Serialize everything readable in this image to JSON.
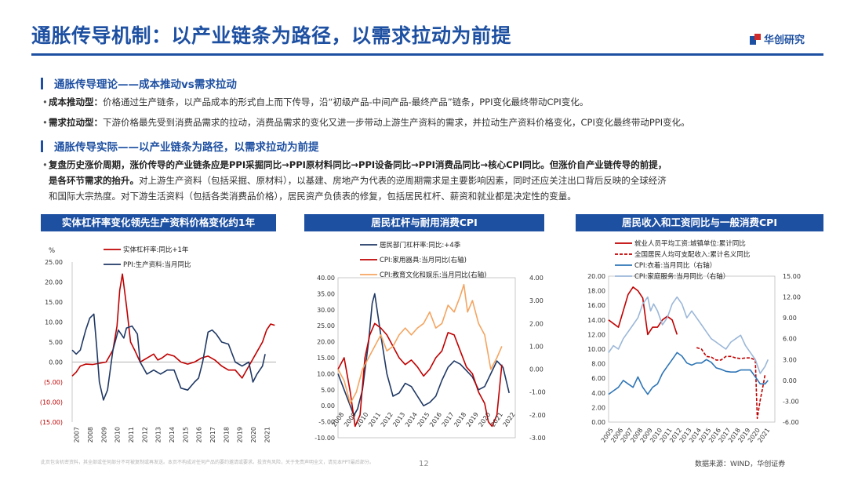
{
  "header": {
    "title": "通胀传导机制：以产业链条为路径，以需求拉动为前提",
    "logo_text": "华创研究"
  },
  "section1": {
    "heading": "通胀传导理论——成本推动vs需求拉动",
    "bullets": [
      {
        "bold": "成本推动型：",
        "text": "价格通过生产链条，以产品成本的形式自上而下传导，沿“初级产品-中间产品-最终产品”链条，PPI变化最终带动CPI变化。"
      },
      {
        "bold": "需求拉动型：",
        "text": "下游价格最先受到消费品需求的拉动，消费品需求的变化又进一步带动上游生产资料的需求，并拉动生产资料价格变化，CPI变化最终带动PPI变化。"
      }
    ]
  },
  "section2": {
    "heading": "通胀传导实际——以产业链条为路径，以需求拉动为前提",
    "bold_lines": [
      "复盘历史涨价周期，涨价传导的产业链条应是PPI采掘同比→PPI原材料同比→PPI设备同比→PPI消费品同比→核心CPI同比。但涨价自产业链传导的前提，",
      "是各环节需求的抬升。"
    ],
    "normal_line1": "对上游生产资料（包括采掘、原材料），以基建、房地产为代表的逆周期需求是主要影响因素，同时还应关注出口背后反映的全球经济",
    "normal_line2": "和国际大宗热度。对下游生活资料（包括各类消费品价格），居民资产负债表的修复，包括居民杠杆、薪资和就业都是决定性的变量。"
  },
  "panels": {
    "p1": "实体杠杆率变化领先生产资料价格变化约1年",
    "p2": "居民杠杆与耐用消费CPI",
    "p3": "居民收入和工资同比与一般消费CPI"
  },
  "colors": {
    "brand": "#1e50a2",
    "red": "#c00000",
    "navy": "#1f3864",
    "orange": "#f4a460",
    "blue": "#2e75b6",
    "lightblue": "#9bb7d8"
  },
  "chart_data": [
    {
      "type": "line",
      "unit_label": "%",
      "ylim": [
        -15,
        25
      ],
      "yticks": [
        "25.00",
        "20.00",
        "15.00",
        "10.00",
        "5.00",
        "0.00",
        "(5.00)",
        "(10.00)",
        "(15.00)"
      ],
      "xticks": [
        "2007",
        "2008",
        "2009",
        "2010",
        "2011",
        "2012",
        "2013",
        "2014",
        "2015",
        "2016",
        "2017",
        "2018",
        "2019",
        "2020",
        "2021"
      ],
      "x_range": [
        2007,
        2022
      ],
      "series": [
        {
          "name": "实体杠杆率:同比+1年",
          "color": "red",
          "x": [
            2007.0,
            2007.3,
            2007.6,
            2008.0,
            2008.5,
            2009.0,
            2009.5,
            2010.0,
            2010.3,
            2010.5,
            2010.7,
            2011.0,
            2011.3,
            2011.6,
            2012.0,
            2012.5,
            2013.0,
            2013.3,
            2013.6,
            2014.0,
            2014.5,
            2015.0,
            2015.5,
            2016.0,
            2016.5,
            2017.0,
            2017.5,
            2018.0,
            2018.5,
            2019.0,
            2019.5,
            2020.0,
            2020.5,
            2021.0,
            2021.3,
            2021.6,
            2021.9
          ],
          "y": [
            -3.5,
            -2.5,
            -1,
            -0.5,
            -0.6,
            -0.3,
            0,
            3,
            9,
            18,
            22,
            14,
            5,
            3,
            0,
            1,
            2,
            0.5,
            1,
            2,
            1.5,
            0,
            -0.5,
            0,
            1,
            1.5,
            0.5,
            -1,
            -2,
            -2,
            -4,
            -1,
            2,
            5,
            8,
            9.5,
            9.2
          ]
        },
        {
          "name": "PPI:生产资料:当月同比",
          "color": "navy",
          "x": [
            2007.0,
            2007.3,
            2007.6,
            2008.0,
            2008.3,
            2008.6,
            2008.8,
            2009.0,
            2009.3,
            2009.6,
            2010.0,
            2010.4,
            2010.8,
            2011.0,
            2011.4,
            2011.8,
            2012.0,
            2012.5,
            2013.0,
            2013.5,
            2014.0,
            2014.5,
            2015.0,
            2015.5,
            2016.0,
            2016.3,
            2016.6,
            2017.0,
            2017.3,
            2017.6,
            2018.0,
            2018.5,
            2019.0,
            2019.5,
            2020.0,
            2020.3,
            2020.6,
            2021.0,
            2021.2
          ],
          "y": [
            3,
            2,
            3,
            8,
            11,
            12,
            4,
            -5,
            -9.5,
            -7,
            3,
            8,
            6,
            8.5,
            9,
            7,
            0,
            -3,
            -2,
            -3,
            -2,
            -2,
            -6.5,
            -7,
            -5,
            -4,
            0,
            7.5,
            8,
            7,
            5,
            4.5,
            0,
            -1,
            0,
            -5,
            -3,
            -1,
            2
          ]
        }
      ]
    },
    {
      "type": "line",
      "ylim_left": [
        -10,
        40
      ],
      "ylim_right": [
        -3,
        4
      ],
      "yticks_left": [
        "40.00",
        "35.00",
        "30.00",
        "25.00",
        "20.00",
        "15.00",
        "10.00",
        "5.00",
        "0.00",
        "-5.00",
        "-10.00"
      ],
      "yticks_right": [
        "4.00",
        "3.00",
        "2.00",
        "1.00",
        "0.00",
        "-1.00",
        "-2.00",
        "-3.00"
      ],
      "xticks": [
        "2008",
        "2009",
        "2010",
        "2011",
        "2012",
        "2013",
        "2014",
        "2015",
        "2016",
        "2017",
        "2018",
        "2019",
        "2020",
        "2021",
        "2022"
      ],
      "x_range": [
        2008,
        2022.5
      ],
      "series": [
        {
          "name": "居民部门杠杆率:同比:+4季",
          "color": "navy",
          "axis": "left",
          "x": [
            2008.0,
            2008.5,
            2009.0,
            2009.3,
            2009.6,
            2010.0,
            2010.5,
            2010.8,
            2011.0,
            2011.5,
            2012.0,
            2012.5,
            2013.0,
            2013.5,
            2014.0,
            2014.5,
            2015.0,
            2015.5,
            2016.0,
            2016.5,
            2017.0,
            2017.5,
            2018.0,
            2018.5,
            2019.0,
            2019.5,
            2020.0,
            2020.5,
            2021.0,
            2021.5,
            2022.0
          ],
          "y": [
            10,
            5,
            0,
            -3,
            -1,
            5,
            20,
            32,
            35,
            22,
            10,
            3,
            4,
            7,
            6,
            3,
            0,
            1,
            3,
            8,
            12,
            14,
            13,
            11,
            9,
            5,
            6,
            10,
            14,
            12,
            4
          ]
        },
        {
          "name": "CPI:家用器具:当月同比(右轴)",
          "color": "red",
          "axis": "right",
          "x": [
            2008.0,
            2008.5,
            2009.0,
            2009.4,
            2009.8,
            2010.2,
            2010.6,
            2011.0,
            2011.5,
            2012.0,
            2012.5,
            2013.0,
            2013.5,
            2014.0,
            2014.5,
            2015.0,
            2015.5,
            2016.0,
            2016.5,
            2017.0,
            2017.5,
            2018.0,
            2018.5,
            2019.0,
            2019.5,
            2020.0,
            2020.3,
            2020.6,
            2021.0,
            2021.4
          ],
          "y": [
            0,
            0.5,
            -1,
            -2.5,
            -2,
            0.5,
            1.5,
            2,
            1.8,
            1.5,
            1,
            0.5,
            0.2,
            0.4,
            0.1,
            -0.3,
            0,
            0.5,
            0.8,
            1.6,
            1.5,
            0.8,
            0.1,
            -0.2,
            -1,
            -1.5,
            -2.3,
            -2.5,
            -2,
            0.2
          ]
        },
        {
          "name": "CPI:教育文化和娱乐:当月同比(右轴)",
          "color": "orange",
          "axis": "right",
          "x": [
            2008.0,
            2008.5,
            2009.0,
            2009.5,
            2010.0,
            2010.5,
            2011.0,
            2011.5,
            2012.0,
            2012.5,
            2013.0,
            2013.5,
            2014.0,
            2014.5,
            2015.0,
            2015.5,
            2016.0,
            2016.5,
            2017.0,
            2017.5,
            2018.0,
            2018.3,
            2018.6,
            2019.0,
            2019.5,
            2020.0,
            2020.5,
            2021.0,
            2021.4
          ],
          "y": [
            0,
            -0.5,
            -1.5,
            -1,
            0,
            0.5,
            1,
            1.5,
            0.8,
            1,
            1.5,
            1.8,
            1.5,
            1.8,
            2,
            2.5,
            1.8,
            2,
            2.8,
            2.5,
            3.2,
            3.7,
            2.5,
            3,
            2,
            1.5,
            0,
            0.5,
            1
          ]
        }
      ]
    },
    {
      "type": "line",
      "ylim_left": [
        0,
        20
      ],
      "ylim_right": [
        -6,
        15
      ],
      "yticks_left": [
        "20.00",
        "18.00",
        "16.00",
        "14.00",
        "12.00",
        "10.00",
        "8.00",
        "6.00",
        "4.00",
        "2.00",
        "0.00"
      ],
      "yticks_right": [
        "15.00",
        "12.00",
        "9.00",
        "6.00",
        "3.00",
        "0.00",
        "-3.00",
        "-6.00"
      ],
      "xticks": [
        "2005",
        "2006",
        "2007",
        "2008",
        "2009",
        "2010",
        "2011",
        "2012",
        "2013",
        "2014",
        "2015",
        "2016",
        "2017",
        "2018",
        "2019",
        "2020",
        "2021"
      ],
      "x_range": [
        2005,
        2022
      ],
      "series": [
        {
          "name": "就业人员平均工资:城镇单位:累计同比",
          "color": "red",
          "axis": "left",
          "dash": false,
          "x": [
            2005.0,
            2006.0,
            2007.0,
            2007.5,
            2008.0,
            2008.5,
            2009.0,
            2009.5,
            2010.0,
            2010.5,
            2011.0,
            2011.5,
            2012.0
          ],
          "y": [
            14,
            13,
            17.5,
            18.5,
            18,
            17,
            12,
            13,
            13,
            14,
            14.5,
            14,
            12
          ]
        },
        {
          "name": "全国居民人均可支配收入:累计名义同比",
          "color": "red",
          "axis": "left",
          "dash": true,
          "x": [
            2014.0,
            2014.5,
            2015.0,
            2015.5,
            2016.0,
            2016.5,
            2017.0,
            2017.5,
            2018.0,
            2018.5,
            2019.0,
            2019.5,
            2020.0,
            2020.2,
            2020.5,
            2020.8,
            2021.0
          ],
          "y": [
            10.2,
            10,
            9,
            8.9,
            8.5,
            8.5,
            9,
            9,
            8.8,
            8.7,
            8.8,
            8.8,
            8.5,
            0.5,
            3,
            5,
            6.5
          ]
        },
        {
          "name": "CPI:衣着:当月同比（右轴）",
          "color": "blue",
          "axis": "right",
          "dash": false,
          "x": [
            2005.0,
            2005.5,
            2006.0,
            2006.5,
            2007.0,
            2007.5,
            2008.0,
            2008.5,
            2009.0,
            2009.5,
            2010.0,
            2010.5,
            2011.0,
            2011.5,
            2012.0,
            2012.5,
            2013.0,
            2013.5,
            2014.0,
            2014.5,
            2015.0,
            2015.5,
            2016.0,
            2016.5,
            2017.0,
            2017.5,
            2018.0,
            2018.5,
            2019.0,
            2019.5,
            2020.0,
            2020.5,
            2021.0,
            2021.3
          ],
          "y": [
            -2,
            -1.5,
            -1,
            0,
            -0.5,
            -1,
            0.5,
            -1,
            -2,
            -1,
            -0.5,
            1,
            2,
            3,
            4,
            3.5,
            2.5,
            2.2,
            2.5,
            2.5,
            3,
            2.6,
            1.8,
            1.6,
            1.3,
            1.2,
            1.2,
            1.5,
            1.5,
            1.5,
            0.5,
            -0.5,
            -0.5,
            0
          ]
        },
        {
          "name": "CPI:家庭服务:当月同比（右轴）",
          "color": "lightblue",
          "axis": "right",
          "dash": false,
          "x": [
            2005.0,
            2005.5,
            2006.0,
            2006.5,
            2007.0,
            2007.5,
            2008.0,
            2008.5,
            2009.0,
            2009.3,
            2009.6,
            2010.0,
            2010.5,
            2011.0,
            2011.5,
            2012.0,
            2012.5,
            2013.0,
            2013.5,
            2014.0,
            2014.5,
            2015.0,
            2015.5,
            2016.0,
            2016.5,
            2017.0,
            2017.5,
            2018.0,
            2018.5,
            2019.0,
            2019.5,
            2020.0,
            2020.5,
            2021.0,
            2021.3
          ],
          "y": [
            4,
            5,
            4.5,
            6,
            7,
            8,
            9,
            11,
            12,
            10,
            11,
            10,
            8,
            9,
            11,
            12,
            11,
            9,
            10,
            9,
            8,
            7,
            6,
            5.5,
            5,
            4.5,
            5.5,
            6,
            6.5,
            5,
            4,
            3,
            1,
            2,
            3
          ]
        }
      ]
    }
  ],
  "footer": {
    "disclaimer": "此页包含机密资料，其全部或任何部分不可被复制或再发送。本页不构成对任何产品的要约邀请或要求。投资有风险，关于免责声明全文，请见本PPT最后部分。",
    "page_number": "12",
    "source": "数据来源：WIND，华创证券"
  }
}
